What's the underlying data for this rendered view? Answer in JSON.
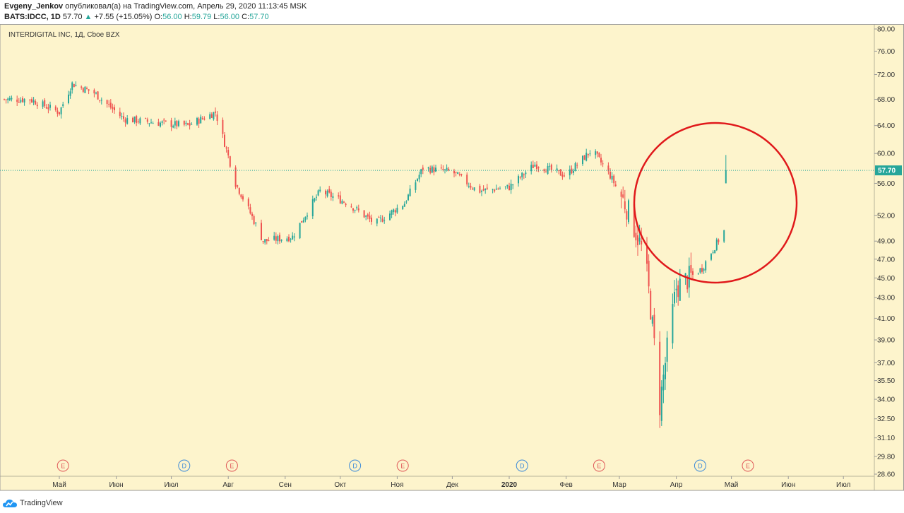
{
  "header": {
    "author": "Evgeny_Jenkov",
    "published_text": "опубликовал(а) на TradingView.com, Апрель 29, 2020 11:13:45 MSK",
    "symbol": "BATS:IDCC, 1D",
    "last": "57.70",
    "change": "+7.55 (+15.05%)",
    "o_label": "O:",
    "o_value": "56.00",
    "h_label": "H:",
    "h_value": "59.79",
    "l_label": "L:",
    "l_value": "56.00",
    "c_label": "C:",
    "c_value": "57.70"
  },
  "footer": {
    "brand": "TradingView"
  },
  "colors": {
    "background": "#fdf4cc",
    "up": "#26a69a",
    "down": "#ef5350",
    "annotation_circle": "#e0191b",
    "price_line": "#26a69a"
  },
  "chart_data": {
    "type": "candlestick",
    "title": "INTERDIGITAL INC, 1Д, Cboe BZX",
    "y_axis": {
      "scale": "log",
      "ticks": [
        "80.00",
        "76.00",
        "72.00",
        "68.00",
        "64.00",
        "60.00",
        "56.00",
        "52.00",
        "49.00",
        "47.00",
        "45.00",
        "43.00",
        "41.00",
        "39.00",
        "37.00",
        "35.50",
        "34.00",
        "32.50",
        "31.10",
        "29.80",
        "28.60"
      ],
      "ylim": [
        28.6,
        80.0
      ]
    },
    "x_axis": {
      "ticks": [
        "Май",
        "Июн",
        "Июл",
        "Авг",
        "Сен",
        "Окт",
        "Ноя",
        "Дек",
        "2020",
        "Фев",
        "Мар",
        "Апр",
        "Май",
        "Июн",
        "Июл"
      ]
    },
    "last_price_label": "57.70",
    "events": [
      {
        "label": "E",
        "month": "Май 2019"
      },
      {
        "label": "D",
        "month": "Июл 2019"
      },
      {
        "label": "E",
        "month": "Авг 2019"
      },
      {
        "label": "D",
        "month": "Окт 2019"
      },
      {
        "label": "E",
        "month": "Ноя 2019"
      },
      {
        "label": "D",
        "month": "Янв 2020"
      },
      {
        "label": "E",
        "month": "Фев 2020"
      },
      {
        "label": "D",
        "month": "Апр 2020"
      },
      {
        "label": "E",
        "month": "Май 2020"
      }
    ],
    "close_series_approx": [
      {
        "date": "2019-04-15",
        "close": 68.0
      },
      {
        "date": "2019-05-01",
        "close": 66.0
      },
      {
        "date": "2019-05-08",
        "close": 70.5
      },
      {
        "date": "2019-05-20",
        "close": 69.0
      },
      {
        "date": "2019-06-05",
        "close": 65.0
      },
      {
        "date": "2019-06-20",
        "close": 64.5
      },
      {
        "date": "2019-07-10",
        "close": 64.0
      },
      {
        "date": "2019-07-25",
        "close": 66.0
      },
      {
        "date": "2019-08-05",
        "close": 56.0
      },
      {
        "date": "2019-08-20",
        "close": 49.0
      },
      {
        "date": "2019-09-05",
        "close": 49.5
      },
      {
        "date": "2019-09-20",
        "close": 55.0
      },
      {
        "date": "2019-10-05",
        "close": 53.5
      },
      {
        "date": "2019-10-20",
        "close": 51.0
      },
      {
        "date": "2019-11-05",
        "close": 53.5
      },
      {
        "date": "2019-11-15",
        "close": 58.0
      },
      {
        "date": "2019-12-01",
        "close": 57.5
      },
      {
        "date": "2019-12-15",
        "close": 55.0
      },
      {
        "date": "2020-01-01",
        "close": 55.5
      },
      {
        "date": "2020-01-15",
        "close": 58.5
      },
      {
        "date": "2020-02-01",
        "close": 57.0
      },
      {
        "date": "2020-02-15",
        "close": 60.5
      },
      {
        "date": "2020-02-25",
        "close": 57.0
      },
      {
        "date": "2020-03-05",
        "close": 53.0
      },
      {
        "date": "2020-03-15",
        "close": 47.0
      },
      {
        "date": "2020-03-23",
        "close": 33.5
      },
      {
        "date": "2020-04-01",
        "close": 44.0
      },
      {
        "date": "2020-04-15",
        "close": 46.0
      },
      {
        "date": "2020-04-27",
        "close": 50.15
      },
      {
        "date": "2020-04-28",
        "open": 56.0,
        "high": 59.79,
        "low": 56.0,
        "close": 57.7
      }
    ]
  }
}
